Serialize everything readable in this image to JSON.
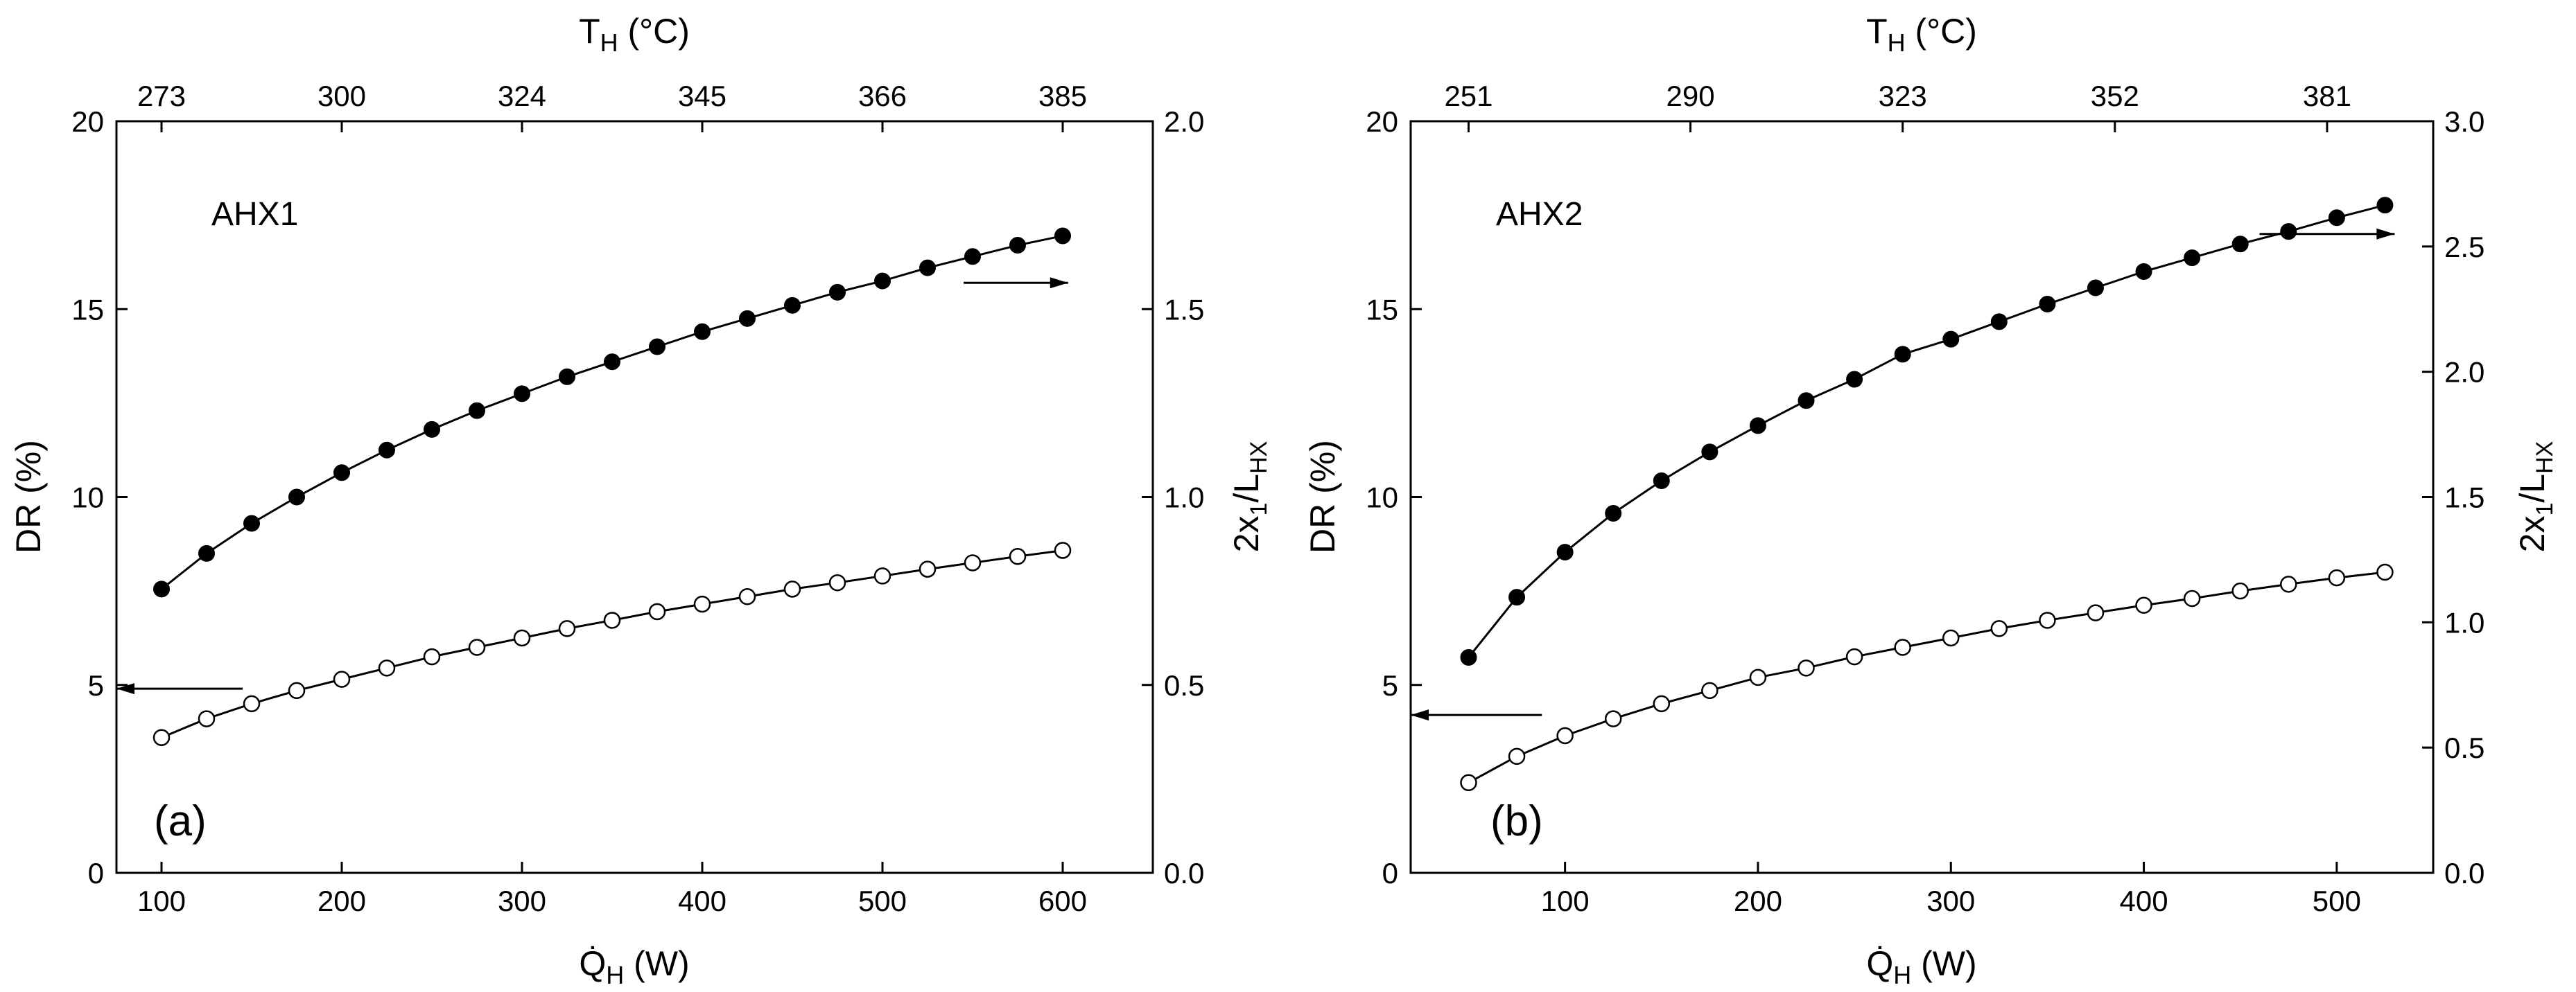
{
  "chart_data": [
    {
      "type": "line",
      "panel": "(a)",
      "title": "AHX1",
      "xlabel": "Q̇",
      "xlabel_sub": "H",
      "xlabel_unit": " (W)",
      "xlim": [
        75,
        650
      ],
      "xticks": [
        100,
        200,
        300,
        400,
        500,
        600
      ],
      "top_label": "T",
      "top_label_sub": "H",
      "top_label_unit": " (°C)",
      "top_ticks": [
        {
          "x": 100,
          "label": "273"
        },
        {
          "x": 200,
          "label": "300"
        },
        {
          "x": 300,
          "label": "324"
        },
        {
          "x": 400,
          "label": "345"
        },
        {
          "x": 500,
          "label": "366"
        },
        {
          "x": 600,
          "label": "385"
        }
      ],
      "ylabel_left": "DR (%)",
      "ylim_left": [
        0,
        20
      ],
      "yticks_left": [
        0,
        5,
        10,
        15,
        20
      ],
      "ylabel_right": "2x",
      "ylabel_right_sub1": "1",
      "ylabel_right_mid": "/L",
      "ylabel_right_sub2": "HX",
      "ylim_right": [
        0,
        2.0
      ],
      "yticks_right": [
        "0.0",
        "0.5",
        "1.0",
        "1.5",
        "2.0"
      ],
      "series": [
        {
          "name": "DR",
          "axis": "left",
          "marker": "open",
          "x": [
            100,
            125,
            150,
            175,
            200,
            225,
            250,
            275,
            300,
            325,
            350,
            375,
            400,
            425,
            450,
            475,
            500,
            525,
            550,
            575,
            600
          ],
          "values": [
            3.6,
            4.1,
            4.5,
            4.85,
            5.15,
            5.45,
            5.75,
            6.0,
            6.25,
            6.5,
            6.72,
            6.95,
            7.15,
            7.35,
            7.55,
            7.72,
            7.9,
            8.08,
            8.25,
            8.42,
            8.58
          ]
        },
        {
          "name": "2x1/LHX",
          "axis": "right",
          "marker": "filled",
          "x": [
            100,
            125,
            150,
            175,
            200,
            225,
            250,
            275,
            300,
            325,
            350,
            375,
            400,
            425,
            450,
            475,
            500,
            525,
            550,
            575,
            600
          ],
          "values": [
            0.755,
            0.85,
            0.93,
            1.0,
            1.065,
            1.125,
            1.18,
            1.23,
            1.275,
            1.32,
            1.36,
            1.4,
            1.44,
            1.475,
            1.51,
            1.545,
            1.575,
            1.61,
            1.64,
            1.67,
            1.695
          ]
        }
      ],
      "arrows": [
        {
          "direction": "left",
          "axis": "left",
          "x_from": 145,
          "x_to": 75,
          "y": 4.9
        },
        {
          "direction": "right",
          "axis": "right",
          "x_from": 545,
          "x_to": 603,
          "y": 1.57
        }
      ]
    },
    {
      "type": "line",
      "panel": "(b)",
      "title": "AHX2",
      "xlabel": "Q̇",
      "xlabel_sub": "H",
      "xlabel_unit": " (W)",
      "xlim": [
        20,
        550
      ],
      "xticks": [
        100,
        200,
        300,
        400,
        500
      ],
      "top_label": "T",
      "top_label_sub": "H",
      "top_label_unit": " (°C)",
      "top_ticks": [
        {
          "x": 50,
          "label": "251"
        },
        {
          "x": 165,
          "label": "290"
        },
        {
          "x": 275,
          "label": "323"
        },
        {
          "x": 385,
          "label": "352"
        },
        {
          "x": 495,
          "label": "381"
        }
      ],
      "ylabel_left": "DR (%)",
      "ylim_left": [
        0,
        20
      ],
      "yticks_left": [
        0,
        5,
        10,
        15,
        20
      ],
      "ylabel_right": "2x",
      "ylabel_right_sub1": "1",
      "ylabel_right_mid": "/L",
      "ylabel_right_sub2": "HX",
      "ylim_right": [
        0,
        3.0
      ],
      "yticks_right": [
        "0.0",
        "0.5",
        "1.0",
        "1.5",
        "2.0",
        "2.5",
        "3.0"
      ],
      "series": [
        {
          "name": "DR",
          "axis": "left",
          "marker": "open",
          "x": [
            50,
            75,
            100,
            125,
            150,
            175,
            200,
            225,
            250,
            275,
            300,
            325,
            350,
            375,
            400,
            425,
            450,
            475,
            500,
            525
          ],
          "values": [
            2.4,
            3.1,
            3.65,
            4.1,
            4.5,
            4.85,
            5.2,
            5.45,
            5.75,
            6.0,
            6.25,
            6.5,
            6.72,
            6.92,
            7.12,
            7.3,
            7.5,
            7.68,
            7.85,
            8.0
          ]
        },
        {
          "name": "2x1/LHX",
          "axis": "right",
          "marker": "filled",
          "x": [
            50,
            75,
            100,
            125,
            150,
            175,
            200,
            225,
            250,
            275,
            300,
            325,
            350,
            375,
            400,
            425,
            450,
            475,
            500,
            525
          ],
          "values": [
            0.86,
            1.1,
            1.28,
            1.435,
            1.565,
            1.68,
            1.785,
            1.885,
            1.97,
            2.07,
            2.13,
            2.2,
            2.27,
            2.335,
            2.4,
            2.455,
            2.51,
            2.56,
            2.615,
            2.665
          ]
        }
      ],
      "arrows": [
        {
          "direction": "left",
          "axis": "left",
          "x_from": 88,
          "x_to": 20,
          "y": 4.2
        },
        {
          "direction": "right",
          "axis": "right",
          "x_from": 460,
          "x_to": 530,
          "y": 2.55
        }
      ]
    }
  ]
}
